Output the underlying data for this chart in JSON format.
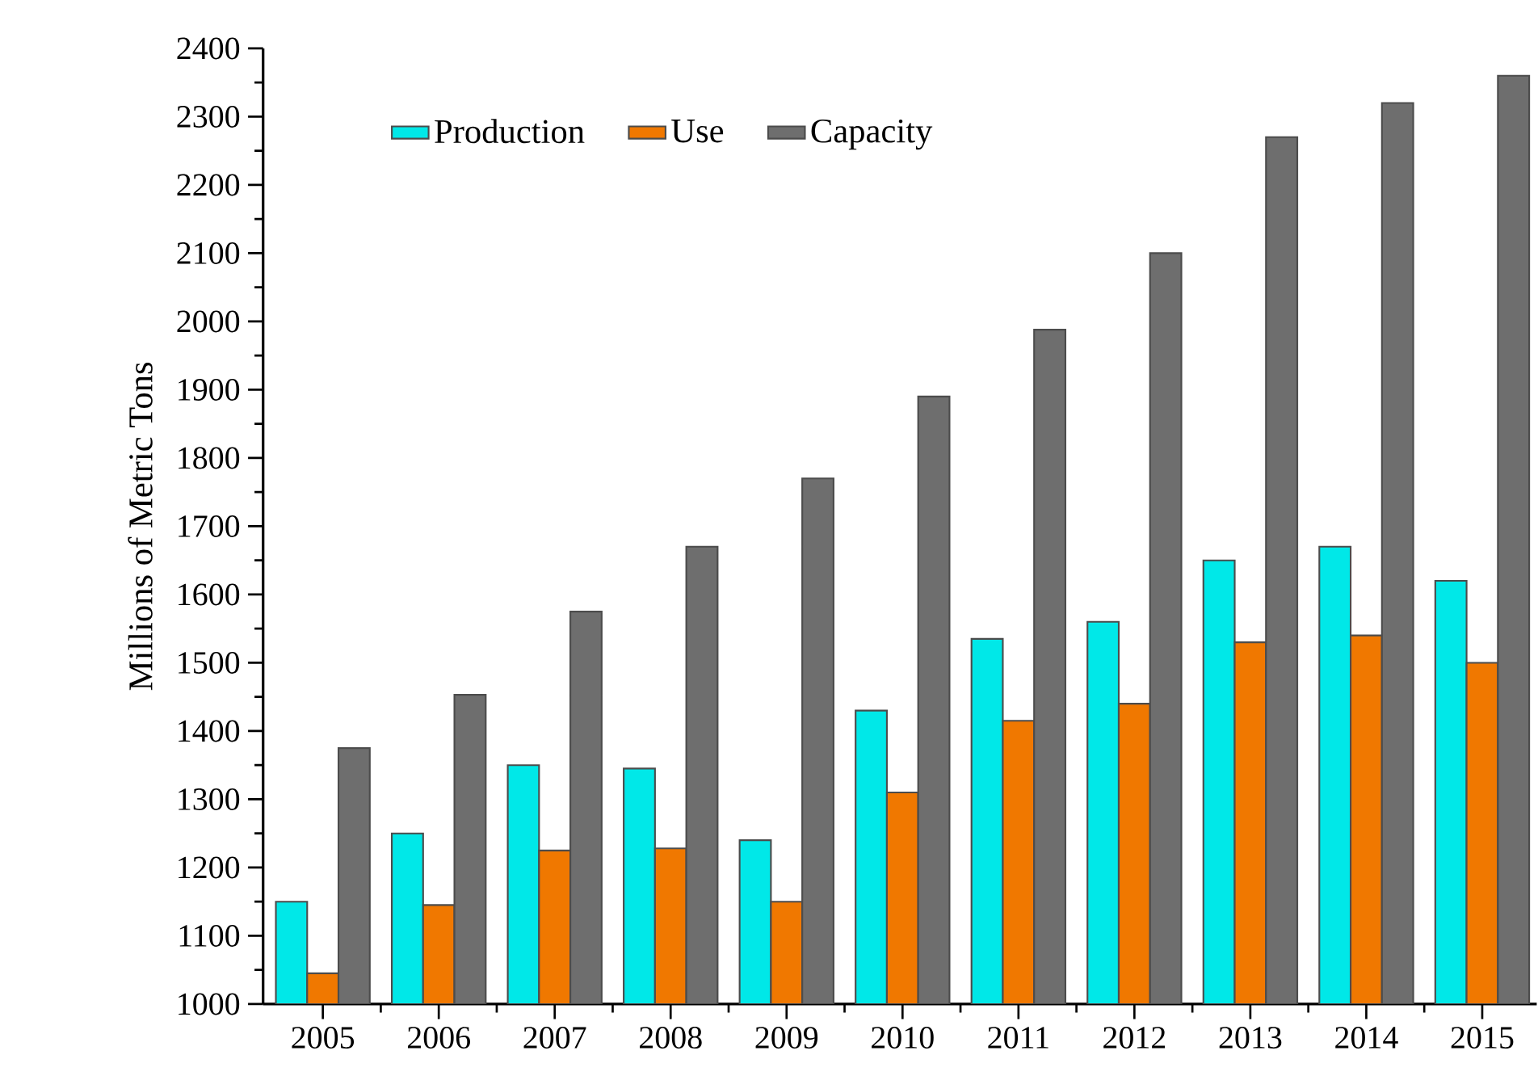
{
  "chart_data": {
    "type": "bar",
    "ylabel": "Millions of Metric Tons",
    "categories": [
      "2005",
      "2006",
      "2007",
      "2008",
      "2009",
      "2010",
      "2011",
      "2012",
      "2013",
      "2014",
      "2015"
    ],
    "series": [
      {
        "name": "Production",
        "color": "#00e8e8",
        "values": [
          1150,
          1250,
          1350,
          1345,
          1240,
          1430,
          1535,
          1560,
          1650,
          1670,
          1620
        ]
      },
      {
        "name": "Use",
        "color": "#f07800",
        "values": [
          1045,
          1145,
          1225,
          1228,
          1150,
          1310,
          1415,
          1440,
          1530,
          1540,
          1500
        ]
      },
      {
        "name": "Capacity",
        "color": "#6e6e6e",
        "values": [
          1375,
          1453,
          1575,
          1670,
          1770,
          1890,
          1988,
          2100,
          2270,
          2320,
          2360
        ]
      }
    ],
    "ylim": [
      1000,
      2400
    ],
    "yticks": [
      1000,
      1100,
      1200,
      1300,
      1400,
      1500,
      1600,
      1700,
      1800,
      1900,
      2000,
      2100,
      2200,
      2300,
      2400
    ],
    "legend": "top"
  }
}
